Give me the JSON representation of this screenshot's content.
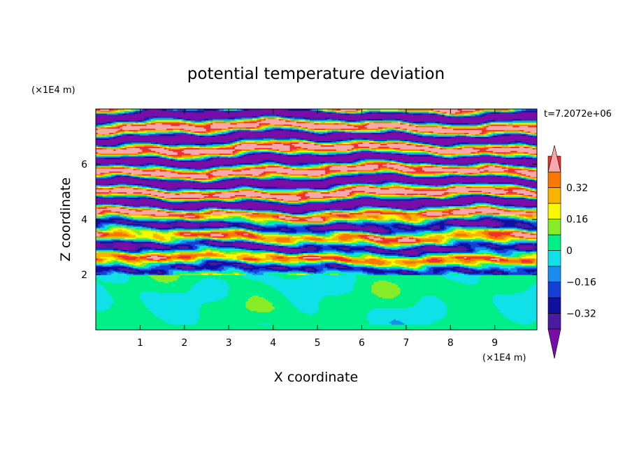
{
  "chart_data": {
    "type": "heatmap",
    "title": "potential temperature deviation",
    "xlabel": "X coordinate",
    "ylabel": "Z coordinate",
    "x_unit": "(×1E4 m)",
    "z_unit": "(×1E4 m)",
    "time_label": "t=7.2072e+06",
    "xlim": [
      0,
      9.95
    ],
    "ylim": [
      0,
      8
    ],
    "x_ticks": [
      "1",
      "2",
      "3",
      "4",
      "5",
      "6",
      "7",
      "8",
      "9"
    ],
    "y_ticks": [
      "2",
      "4",
      "6"
    ],
    "colorbar": {
      "levels": [
        -0.48,
        -0.4,
        -0.32,
        -0.24,
        -0.16,
        -0.08,
        0,
        0.08,
        0.16,
        0.24,
        0.32,
        0.4,
        0.48
      ],
      "colors": [
        "#7a0ca8",
        "#4a1aa0",
        "#1010a0",
        "#1440d8",
        "#1a8cf0",
        "#10e0e8",
        "#00f088",
        "#88ec28",
        "#f8f800",
        "#f8b400",
        "#f87800",
        "#f03030",
        "#f8a8a8"
      ],
      "tick_labels": [
        "0.32",
        "0.16",
        "0",
        "−0.16",
        "−0.32"
      ],
      "tick_values": [
        0.32,
        0.16,
        0,
        -0.16,
        -0.32
      ],
      "extend": "both"
    },
    "field_summary": {
      "z_0_to_2": "near 0 (green, -0.04 to 0.08)",
      "z_2_to_4": "mixed layered filaments -0.4 to 0.4",
      "z_4_to_8": "alternating strong bands: purple (< -0.4) and pink (> 0.4)"
    }
  }
}
